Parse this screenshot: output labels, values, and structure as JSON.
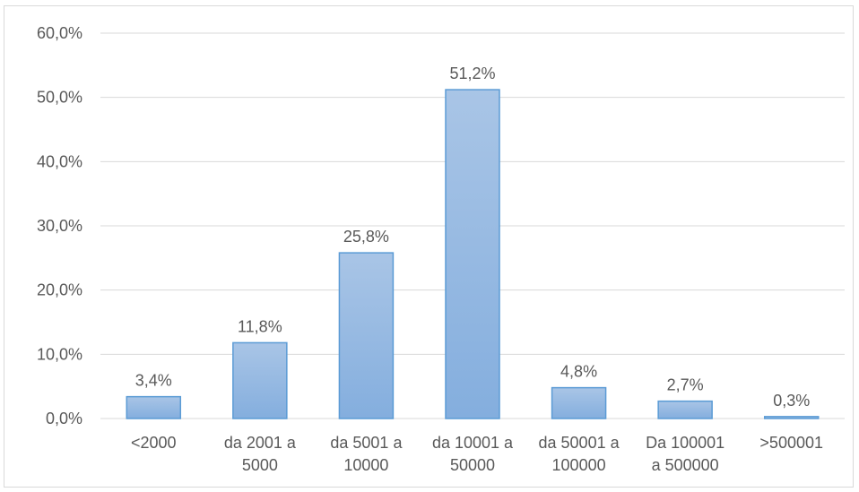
{
  "chart_data": {
    "type": "bar",
    "categories": [
      [
        "<2000"
      ],
      [
        "da 2001 a",
        "5000"
      ],
      [
        "da 5001 a",
        "10000"
      ],
      [
        "da 10001 a",
        "50000"
      ],
      [
        "da 50001 a",
        "100000"
      ],
      [
        "Da 100001",
        "a 500000"
      ],
      [
        ">500001"
      ]
    ],
    "values": [
      3.4,
      11.8,
      25.8,
      51.2,
      4.8,
      2.7,
      0.3
    ],
    "data_labels": [
      "3,4%",
      "11,8%",
      "25,8%",
      "51,2%",
      "4,8%",
      "2,7%",
      "0,3%"
    ],
    "ylim": [
      0,
      60
    ],
    "yticks": [
      0,
      10,
      20,
      30,
      40,
      50,
      60
    ],
    "ytick_labels": [
      "0,0%",
      "10,0%",
      "20,0%",
      "30,0%",
      "40,0%",
      "50,0%",
      "60,0%"
    ],
    "grid": true,
    "colors": {
      "bar_fill_top": "#a9c5e6",
      "bar_fill_bottom": "#84aede",
      "bar_stroke": "#5b9bd5",
      "grid": "#d9d9d9",
      "text": "#595959"
    }
  }
}
